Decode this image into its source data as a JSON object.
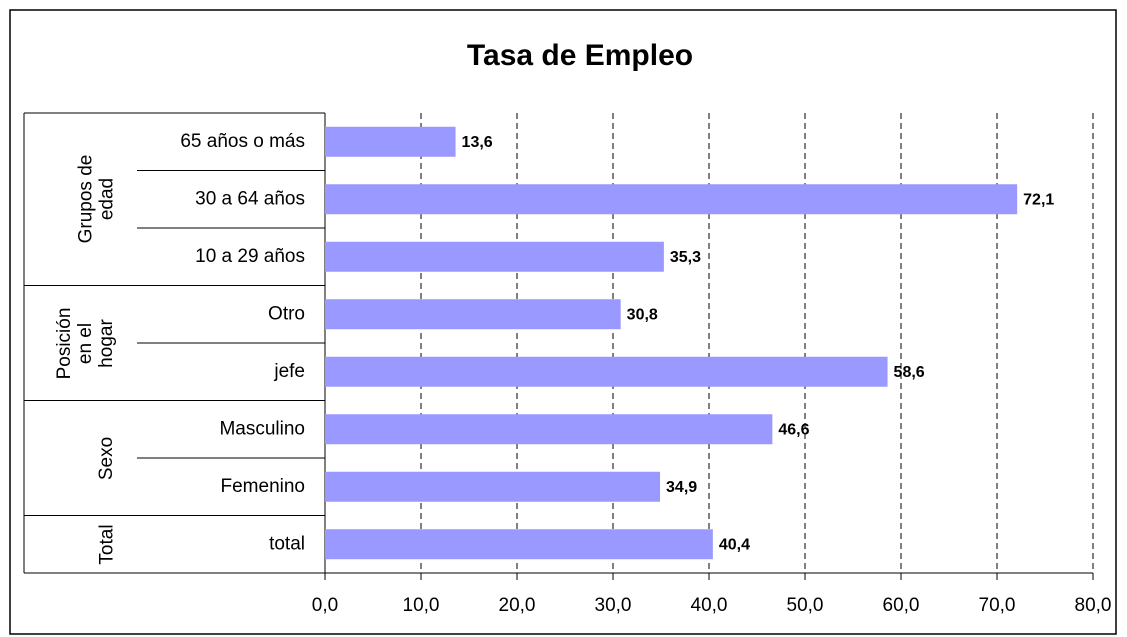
{
  "chart_data": {
    "type": "bar",
    "orientation": "horizontal",
    "title": "Tasa de Empleo",
    "groups": [
      {
        "label": "Grupos de edad",
        "categories": [
          "65 años o más",
          "30 a 64 años",
          "10 a 29 años"
        ],
        "values": [
          13.6,
          72.1,
          35.3
        ],
        "value_labels": [
          "13,6",
          "72,1",
          "35,3"
        ]
      },
      {
        "label": "Posición en el hogar",
        "categories": [
          "Otro",
          "jefe"
        ],
        "values": [
          30.8,
          58.6
        ],
        "value_labels": [
          "30,8",
          "58,6"
        ]
      },
      {
        "label": "Sexo",
        "categories": [
          "Masculino",
          "Femenino"
        ],
        "values": [
          46.6,
          34.9
        ],
        "value_labels": [
          "46,6",
          "34,9"
        ]
      },
      {
        "label": "Total",
        "categories": [
          "total"
        ],
        "values": [
          40.4
        ],
        "value_labels": [
          "40,4"
        ]
      }
    ],
    "color": "#9999ff",
    "xlim": [
      0,
      80
    ],
    "xticks": [
      {
        "value": 0,
        "label": "0,0"
      },
      {
        "value": 10,
        "label": "10,0"
      },
      {
        "value": 20,
        "label": "20,0"
      },
      {
        "value": 30,
        "label": "30,0"
      },
      {
        "value": 40,
        "label": "40,0"
      },
      {
        "value": 50,
        "label": "50,0"
      },
      {
        "value": 60,
        "label": "60,0"
      },
      {
        "value": 70,
        "label": "70,0"
      },
      {
        "value": 80,
        "label": "80,0"
      }
    ],
    "grid": true
  }
}
